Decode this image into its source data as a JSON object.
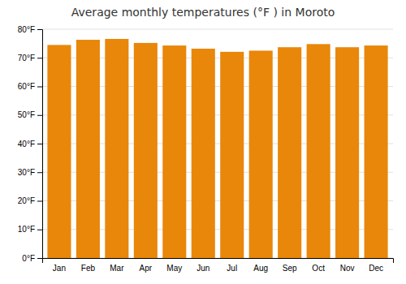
{
  "chart_data": {
    "type": "bar",
    "title": "Average monthly temperatures (°F ) in Moroto",
    "categories": [
      "Jan",
      "Feb",
      "Mar",
      "Apr",
      "May",
      "Jun",
      "Jul",
      "Aug",
      "Sep",
      "Oct",
      "Nov",
      "Dec"
    ],
    "values": [
      74.5,
      76.3,
      76.6,
      75.2,
      74.3,
      73.2,
      72.1,
      72.5,
      73.7,
      74.8,
      73.7,
      74.3
    ],
    "color": "#E8870A",
    "ylim": [
      0,
      80
    ],
    "yticks": [
      {
        "value": 0,
        "label": "0°F"
      },
      {
        "value": 10,
        "label": "10°F"
      },
      {
        "value": 20,
        "label": "20°F"
      },
      {
        "value": 30,
        "label": "30°F"
      },
      {
        "value": 40,
        "label": "40°F"
      },
      {
        "value": 50,
        "label": "50°F"
      },
      {
        "value": 60,
        "label": "60°F"
      },
      {
        "value": 70,
        "label": "70°F"
      },
      {
        "value": 80,
        "label": "80°F"
      }
    ],
    "grid": true
  }
}
